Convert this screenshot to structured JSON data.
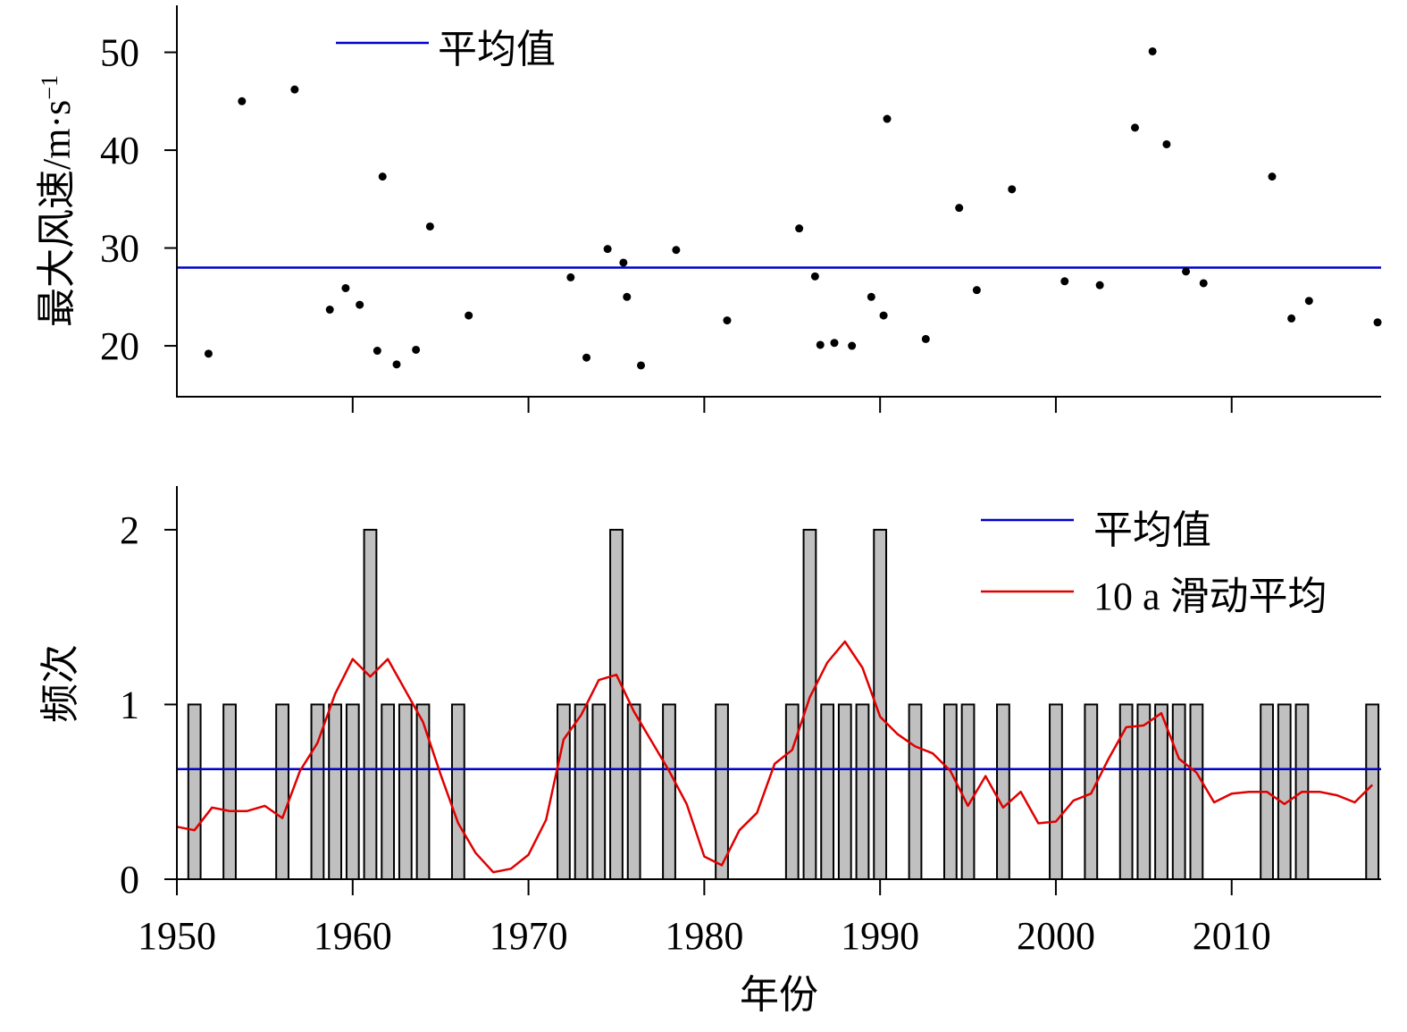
{
  "colors": {
    "mean_line": "#0000cc",
    "moving_average": "#e00000",
    "bar_fill": "#c0c0c0",
    "bar_stroke": "#000000",
    "points": "#000000"
  },
  "chart_data": [
    {
      "type": "scatter",
      "xlabel": "",
      "ylabel": "最大风速/m·s",
      "ylabel_superscript": "−1",
      "xlim": [
        1950,
        2018.5
      ],
      "ylim": [
        14.8,
        54.8
      ],
      "yticks": [
        20,
        30,
        40,
        50
      ],
      "ytick_labels": [
        "20",
        "30",
        "40",
        "50"
      ],
      "xticks": [
        1960,
        1970,
        1980,
        1990,
        2000,
        2010
      ],
      "mean": 28,
      "legend": [
        "平均值"
      ],
      "legend_position": "top-left",
      "points": [
        {
          "x": 1951.8,
          "y": 19.2
        },
        {
          "x": 1953.7,
          "y": 45
        },
        {
          "x": 1956.7,
          "y": 46.2
        },
        {
          "x": 1958.7,
          "y": 23.7
        },
        {
          "x": 1959.6,
          "y": 25.9
        },
        {
          "x": 1960.4,
          "y": 24.2
        },
        {
          "x": 1961.4,
          "y": 19.5
        },
        {
          "x": 1961.7,
          "y": 37.3
        },
        {
          "x": 1962.5,
          "y": 18.1
        },
        {
          "x": 1963.6,
          "y": 19.6
        },
        {
          "x": 1964.4,
          "y": 32.2
        },
        {
          "x": 1966.6,
          "y": 23.1
        },
        {
          "x": 1972.4,
          "y": 27
        },
        {
          "x": 1973.3,
          "y": 18.8
        },
        {
          "x": 1974.5,
          "y": 29.9
        },
        {
          "x": 1975.4,
          "y": 28.5
        },
        {
          "x": 1975.6,
          "y": 25
        },
        {
          "x": 1976.4,
          "y": 18
        },
        {
          "x": 1978.4,
          "y": 29.8
        },
        {
          "x": 1981.3,
          "y": 22.6
        },
        {
          "x": 1985.4,
          "y": 32
        },
        {
          "x": 1986.3,
          "y": 27.1
        },
        {
          "x": 1986.6,
          "y": 20.1
        },
        {
          "x": 1987.4,
          "y": 20.3
        },
        {
          "x": 1988.4,
          "y": 20
        },
        {
          "x": 1989.5,
          "y": 25
        },
        {
          "x": 1990.2,
          "y": 23.1
        },
        {
          "x": 1990.4,
          "y": 43.2
        },
        {
          "x": 1992.6,
          "y": 20.7
        },
        {
          "x": 1994.5,
          "y": 34.1
        },
        {
          "x": 1995.5,
          "y": 25.7
        },
        {
          "x": 1997.5,
          "y": 36
        },
        {
          "x": 2000.5,
          "y": 26.6
        },
        {
          "x": 2002.5,
          "y": 26.2
        },
        {
          "x": 2004.5,
          "y": 42.3
        },
        {
          "x": 2005.5,
          "y": 50.1
        },
        {
          "x": 2006.3,
          "y": 40.6
        },
        {
          "x": 2007.4,
          "y": 27.6
        },
        {
          "x": 2008.4,
          "y": 26.4
        },
        {
          "x": 2012.3,
          "y": 37.3
        },
        {
          "x": 2013.4,
          "y": 22.8
        },
        {
          "x": 2014.4,
          "y": 24.6
        },
        {
          "x": 2018.3,
          "y": 22.4
        }
      ]
    },
    {
      "type": "bar",
      "xlabel": "年份",
      "ylabel": "频次",
      "xlim": [
        1950,
        2018.5
      ],
      "ylim": [
        0,
        2.25
      ],
      "yticks": [
        0,
        1,
        2
      ],
      "ytick_labels": [
        "0",
        "1",
        "2"
      ],
      "xticks": [
        1950,
        1960,
        1970,
        1980,
        1990,
        2000,
        2010
      ],
      "xtick_labels": [
        "1950",
        "1960",
        "1970",
        "1980",
        "1990",
        "2000",
        "2010"
      ],
      "mean": 0.63,
      "legend": [
        "平均值",
        "10 a 滑动平均"
      ],
      "legend_position": "top-right",
      "bars": [
        {
          "x": 1951,
          "y": 1
        },
        {
          "x": 1953,
          "y": 1
        },
        {
          "x": 1956,
          "y": 1
        },
        {
          "x": 1958,
          "y": 1
        },
        {
          "x": 1959,
          "y": 1
        },
        {
          "x": 1960,
          "y": 1
        },
        {
          "x": 1961,
          "y": 2
        },
        {
          "x": 1962,
          "y": 1
        },
        {
          "x": 1963,
          "y": 1
        },
        {
          "x": 1964,
          "y": 1
        },
        {
          "x": 1966,
          "y": 1
        },
        {
          "x": 1972,
          "y": 1
        },
        {
          "x": 1973,
          "y": 1
        },
        {
          "x": 1974,
          "y": 1
        },
        {
          "x": 1975,
          "y": 2
        },
        {
          "x": 1976,
          "y": 1
        },
        {
          "x": 1978,
          "y": 1
        },
        {
          "x": 1981,
          "y": 1
        },
        {
          "x": 1985,
          "y": 1
        },
        {
          "x": 1986,
          "y": 2
        },
        {
          "x": 1987,
          "y": 1
        },
        {
          "x": 1988,
          "y": 1
        },
        {
          "x": 1989,
          "y": 1
        },
        {
          "x": 1990,
          "y": 2
        },
        {
          "x": 1992,
          "y": 1
        },
        {
          "x": 1994,
          "y": 1
        },
        {
          "x": 1995,
          "y": 1
        },
        {
          "x": 1997,
          "y": 1
        },
        {
          "x": 2000,
          "y": 1
        },
        {
          "x": 2002,
          "y": 1
        },
        {
          "x": 2004,
          "y": 1
        },
        {
          "x": 2005,
          "y": 1
        },
        {
          "x": 2006,
          "y": 1
        },
        {
          "x": 2007,
          "y": 1
        },
        {
          "x": 2008,
          "y": 1
        },
        {
          "x": 2012,
          "y": 1
        },
        {
          "x": 2013,
          "y": 1
        },
        {
          "x": 2014,
          "y": 1
        },
        {
          "x": 2018,
          "y": 1
        }
      ],
      "moving_average": [
        [
          1950,
          0.3
        ],
        [
          1951,
          0.28
        ],
        [
          1952,
          0.41
        ],
        [
          1953,
          0.39
        ],
        [
          1954,
          0.39
        ],
        [
          1955,
          0.42
        ],
        [
          1956,
          0.35
        ],
        [
          1957,
          0.62
        ],
        [
          1958,
          0.78
        ],
        [
          1959,
          1.06
        ],
        [
          1960,
          1.26
        ],
        [
          1961,
          1.16
        ],
        [
          1962,
          1.26
        ],
        [
          1963,
          1.08
        ],
        [
          1964,
          0.9
        ],
        [
          1965,
          0.6
        ],
        [
          1966,
          0.32
        ],
        [
          1967,
          0.15
        ],
        [
          1968,
          0.04
        ],
        [
          1969,
          0.06
        ],
        [
          1970,
          0.14
        ],
        [
          1971,
          0.34
        ],
        [
          1972,
          0.8
        ],
        [
          1973,
          0.94
        ],
        [
          1974,
          1.14
        ],
        [
          1975,
          1.17
        ],
        [
          1976,
          0.96
        ],
        [
          1977,
          0.79
        ],
        [
          1978,
          0.62
        ],
        [
          1979,
          0.43
        ],
        [
          1980,
          0.13
        ],
        [
          1981,
          0.08
        ],
        [
          1982,
          0.28
        ],
        [
          1983,
          0.38
        ],
        [
          1984,
          0.66
        ],
        [
          1985,
          0.74
        ],
        [
          1986,
          1.04
        ],
        [
          1987,
          1.24
        ],
        [
          1988,
          1.36
        ],
        [
          1989,
          1.21
        ],
        [
          1990,
          0.93
        ],
        [
          1991,
          0.83
        ],
        [
          1992,
          0.76
        ],
        [
          1993,
          0.72
        ],
        [
          1994,
          0.62
        ],
        [
          1995,
          0.42
        ],
        [
          1996,
          0.59
        ],
        [
          1997,
          0.41
        ],
        [
          1998,
          0.5
        ],
        [
          1999,
          0.32
        ],
        [
          2000,
          0.33
        ],
        [
          2001,
          0.45
        ],
        [
          2002,
          0.49
        ],
        [
          2003,
          0.69
        ],
        [
          2004,
          0.87
        ],
        [
          2005,
          0.88
        ],
        [
          2006,
          0.95
        ],
        [
          2007,
          0.69
        ],
        [
          2008,
          0.61
        ],
        [
          2009,
          0.44
        ],
        [
          2010,
          0.49
        ],
        [
          2011,
          0.5
        ],
        [
          2012,
          0.5
        ],
        [
          2013,
          0.43
        ],
        [
          2014,
          0.5
        ],
        [
          2015,
          0.5
        ],
        [
          2016,
          0.48
        ],
        [
          2017,
          0.44
        ],
        [
          2018,
          0.54
        ]
      ]
    }
  ]
}
